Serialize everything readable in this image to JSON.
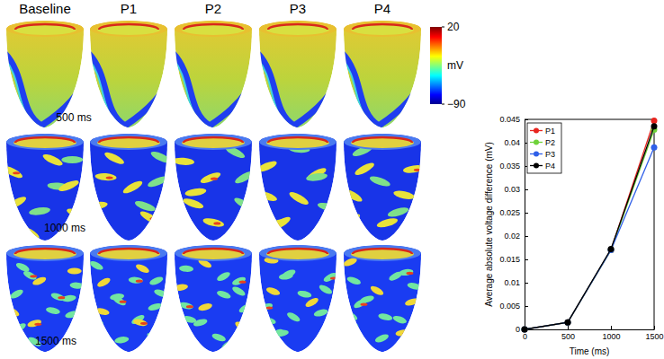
{
  "panels": {
    "columns": [
      "Baseline",
      "P1",
      "P2",
      "P3",
      "P4"
    ],
    "rows": [
      "500 ms",
      "1000 ms",
      "1500 ms"
    ],
    "colorbar": {
      "label": "mV",
      "range": [
        -90,
        20
      ],
      "ticks": [
        {
          "value": -90,
          "label": "−90"
        },
        20
      ]
    }
  },
  "chart_data": {
    "type": "line",
    "x_label": "Time (ms)",
    "y_label": "Average absolute voltage difference (mV)",
    "x": [
      0,
      500,
      1000,
      1500
    ],
    "series": [
      {
        "name": "P1",
        "color": "#e8251f",
        "values": [
          0,
          0.0015,
          0.017,
          0.0447
        ]
      },
      {
        "name": "P2",
        "color": "#6fd23a",
        "values": [
          0,
          0.0015,
          0.017,
          0.0428
        ]
      },
      {
        "name": "P3",
        "color": "#2f5fe8",
        "values": [
          0,
          0.0015,
          0.017,
          0.039
        ]
      },
      {
        "name": "P4",
        "color": "#000000",
        "values": [
          0,
          0.0015,
          0.0172,
          0.0435
        ]
      }
    ],
    "xlim": [
      0,
      1500
    ],
    "xticks": [
      0,
      500,
      1000,
      1500
    ],
    "ylim": [
      0,
      0.045
    ],
    "yticks": [
      0,
      0.005,
      0.01,
      0.015,
      0.02,
      0.025,
      0.03,
      0.035,
      0.04,
      0.045
    ],
    "legend": "upper left",
    "marker": "circle"
  }
}
